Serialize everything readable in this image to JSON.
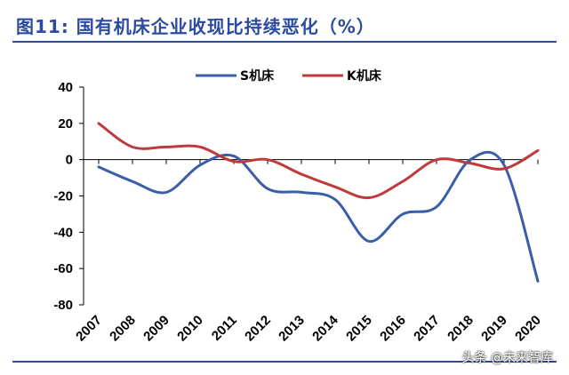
{
  "header": {
    "title": "图11: 国有机床企业收现比持续恶化（%）"
  },
  "watermark": "头条 @未来智库",
  "chart_data": {
    "type": "line",
    "title": "图11: 国有机床企业收现比持续恶化（%）",
    "xlabel": "",
    "ylabel": "",
    "categories": [
      "2007",
      "2008",
      "2009",
      "2010",
      "2011",
      "2012",
      "2013",
      "2014",
      "2015",
      "2016",
      "2017",
      "2018",
      "2019",
      "2020"
    ],
    "x": [
      2007,
      2008,
      2009,
      2010,
      2011,
      2012,
      2013,
      2014,
      2015,
      2016,
      2017,
      2018,
      2019,
      2020
    ],
    "ylim": [
      -80,
      40
    ],
    "yticks": [
      40,
      20,
      0,
      -20,
      -40,
      -60,
      -80
    ],
    "grid": false,
    "legend_position": "top",
    "series": [
      {
        "name": "S机床",
        "color": "#3a5ea8",
        "values": [
          -4,
          -12,
          -18,
          -3,
          2,
          -16,
          -18,
          -22,
          -45,
          -30,
          -26,
          0,
          -3,
          -67
        ]
      },
      {
        "name": "K机床",
        "color": "#c0393b",
        "values": [
          20,
          7,
          7,
          7,
          -1,
          0,
          -8,
          -15,
          -21,
          -12,
          0,
          -2,
          -5,
          5
        ]
      }
    ]
  }
}
